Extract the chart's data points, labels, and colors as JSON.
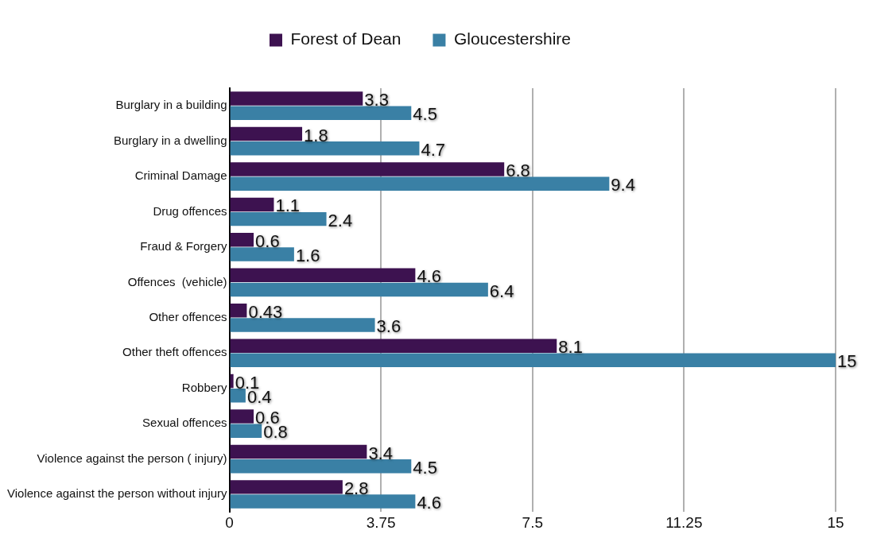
{
  "chart_data": {
    "type": "bar",
    "orientation": "horizontal",
    "categories": [
      "Burglary in a building",
      "Burglary in a dwelling",
      "Criminal Damage",
      "Drug offences",
      "Fraud & Forgery",
      "Offences  (vehicle)",
      "Other offences",
      "Other theft offences",
      "Robbery",
      "Sexual offences",
      "Violence against the person ( injury)",
      "Violence against the person without injury"
    ],
    "series": [
      {
        "name": "Forest of Dean",
        "color": "#3d1250",
        "values": [
          3.3,
          1.8,
          6.8,
          1.1,
          0.6,
          4.6,
          0.43,
          8.1,
          0.1,
          0.6,
          3.4,
          2.8
        ]
      },
      {
        "name": "Gloucestershire",
        "color": "#3a80a5",
        "values": [
          4.5,
          4.7,
          9.4,
          2.4,
          1.6,
          6.4,
          3.6,
          15,
          0.4,
          0.8,
          4.5,
          4.6
        ]
      }
    ],
    "xlim": [
      0,
      15
    ],
    "xticks": [
      0,
      3.75,
      7.5,
      11.25,
      15
    ],
    "grid": "x",
    "legend": "top",
    "data_labels": true
  }
}
